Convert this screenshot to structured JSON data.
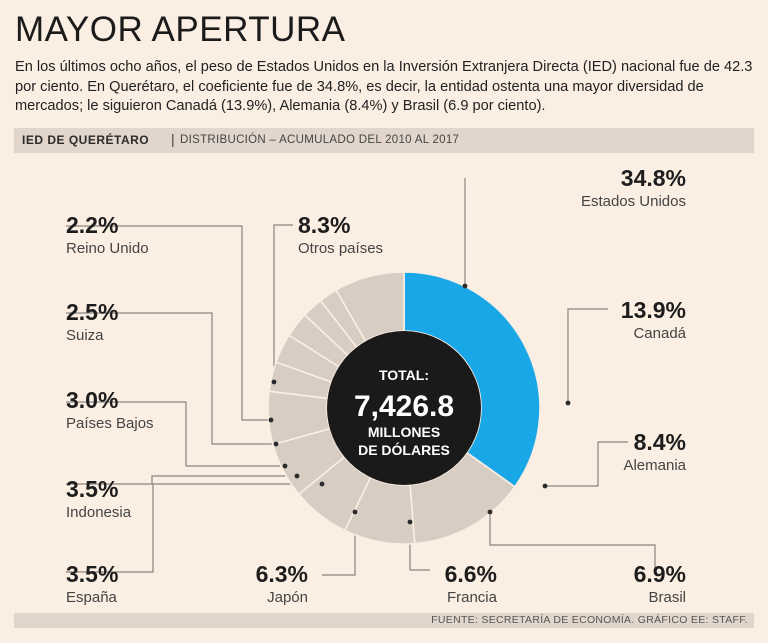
{
  "header": {
    "title": "MAYOR APERTURA",
    "intro": "En los últimos ocho años, el peso de Estados Unidos en la Inversión Extranjera Directa (IED) nacional fue de 42.3 por ciento. En Querétaro, el coeficiente fue de 34.8%, es decir, la entidad ostenta una mayor diversidad de mercados; le siguieron Canadá (13.9%), Alemania (8.4%) y Brasil (6.9 por ciento)."
  },
  "strip": {
    "label": "IED DE QUERÉTARO",
    "separator": "|",
    "subtitle": "DISTRIBUCIÓN – ACUMULADO DEL 2010 AL 2017"
  },
  "chart_data": {
    "type": "pie",
    "title": "IED DE QUERÉTARO",
    "subtitle": "DISTRIBUCIÓN – ACUMULADO DEL 2010 AL 2017",
    "center": {
      "line1": "TOTAL:",
      "line2": "7,426.8",
      "line3": "MILLONES",
      "line4": "DE DÓLARES"
    },
    "slices": [
      {
        "name": "Estados Unidos",
        "value": 34.8,
        "label": "34.8%"
      },
      {
        "name": "Canadá",
        "value": 13.9,
        "label": "13.9%"
      },
      {
        "name": "Alemania",
        "value": 8.4,
        "label": "8.4%"
      },
      {
        "name": "Brasil",
        "value": 6.9,
        "label": "6.9%"
      },
      {
        "name": "Francia",
        "value": 6.6,
        "label": "6.6%"
      },
      {
        "name": "Japón",
        "value": 6.3,
        "label": "6.3%"
      },
      {
        "name": "España",
        "value": 3.5,
        "label": "3.5%"
      },
      {
        "name": "Indonesia",
        "value": 3.5,
        "label": "3.5%"
      },
      {
        "name": "Países Bajos",
        "value": 3.0,
        "label": "3.0%"
      },
      {
        "name": "Suiza",
        "value": 2.5,
        "label": "2.5%"
      },
      {
        "name": "Reino Unido",
        "value": 2.2,
        "label": "2.2%"
      },
      {
        "name": "Otros países",
        "value": 8.3,
        "label": "8.3%"
      }
    ]
  },
  "colors": {
    "highlight": "#1aa7e8",
    "ring": "#d8cdc3",
    "divider": "#fbeee3",
    "center": "#1a1a1a",
    "leader": "#8a8580"
  },
  "footer": {
    "source": "FUENTE: SECRETARÍA DE ECONOMÍA.  GRÁFICO EE: STAFF."
  }
}
